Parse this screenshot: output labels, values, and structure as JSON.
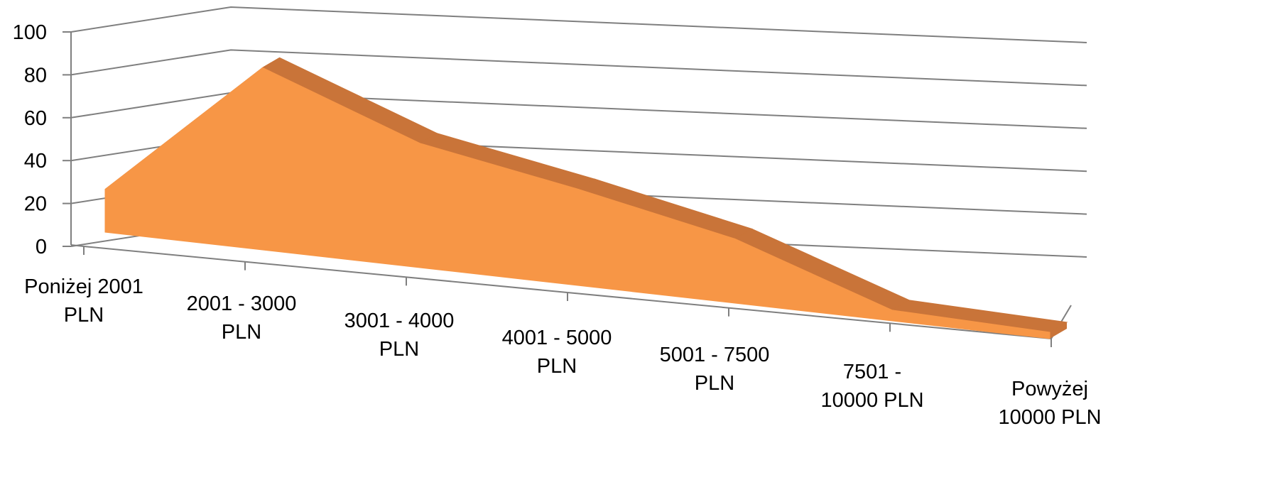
{
  "chart_data": {
    "type": "area",
    "categories": [
      [
        "Poniżej 2001",
        "PLN"
      ],
      [
        "2001 - 3000",
        "PLN"
      ],
      [
        "3001 - 4000",
        "PLN"
      ],
      [
        "4001 - 5000",
        "PLN"
      ],
      [
        "5001 - 7500",
        "PLN"
      ],
      [
        "7501 -",
        "10000 PLN"
      ],
      [
        "Powyżej",
        "10000 PLN"
      ]
    ],
    "series": [
      {
        "values": [
          20,
          85,
          58,
          45,
          30,
          5,
          3
        ],
        "color": "#F79646",
        "shade_color": "#C97439"
      }
    ],
    "y_ticks": [
      "0",
      "20",
      "40",
      "60",
      "80",
      "100"
    ],
    "ylim": [
      0,
      100
    ],
    "grid": true,
    "legend": "none",
    "three_d": true
  }
}
